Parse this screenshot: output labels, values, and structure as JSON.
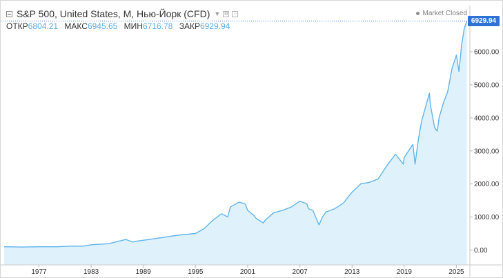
{
  "header": {
    "title": "S&P 500, United States, M, Нью-Йорк (CFD)",
    "market_status": "Market Closed"
  },
  "ohlc": {
    "open_label": "ОТКР",
    "open": "6804.21",
    "high_label": "МАКС",
    "high": "6945.65",
    "low_label": "МИН",
    "low": "6716.78",
    "close_label": "ЗАКР",
    "close": "6929.94"
  },
  "price_axis": {
    "ticks": [
      "6000.00",
      "5000.00",
      "4000.00",
      "3000.00",
      "2000.00",
      "1000.00",
      "0.00"
    ],
    "last_price_label": "6929.94"
  },
  "time_axis": {
    "ticks": [
      "1977",
      "1983",
      "1989",
      "1995",
      "2001",
      "2007",
      "2013",
      "2019",
      "2025"
    ]
  },
  "colors": {
    "line": "#5fb4ea",
    "area": "#dff2fc",
    "price_badge": "#2e73d4",
    "axis_text": "#333333"
  },
  "chart_data": {
    "type": "area",
    "title": "S&P 500, United States, M, Нью-Йорк (CFD)",
    "xlabel": "",
    "ylabel": "",
    "ylim": [
      -450,
      7400
    ],
    "xlim": [
      1972.6,
      2026.55
    ],
    "x": [
      1973,
      1975,
      1977,
      1979,
      1981,
      1982,
      1983,
      1985,
      1987,
      1987.8,
      1988,
      1990,
      1991,
      1993,
      1995,
      1996,
      1997,
      1998,
      1998.7,
      1999,
      2000,
      2000.7,
      2001,
      2001.7,
      2002,
      2002.8,
      2003,
      2004,
      2005,
      2006,
      2007,
      2007.8,
      2008,
      2008.5,
      2009.2,
      2009.6,
      2010,
      2011,
      2012,
      2013,
      2014,
      2015,
      2016,
      2017,
      2018,
      2018.9,
      2019,
      2020,
      2020.25,
      2020.6,
      2021,
      2021.9,
      2022,
      2022.5,
      2022.8,
      2023,
      2023.5,
      2024,
      2024.5,
      2025,
      2025.3,
      2025.6,
      2025.9,
      2026.2
    ],
    "values": [
      100,
      90,
      100,
      100,
      120,
      115,
      160,
      190,
      320,
      240,
      260,
      330,
      370,
      450,
      500,
      650,
      900,
      1100,
      1000,
      1300,
      1450,
      1400,
      1200,
      1050,
      950,
      820,
      900,
      1130,
      1200,
      1300,
      1480,
      1400,
      1250,
      1200,
      760,
      1000,
      1150,
      1250,
      1420,
      1750,
      2000,
      2050,
      2150,
      2550,
      2900,
      2600,
      2800,
      3200,
      2600,
      3300,
      3900,
      4750,
      4400,
      3700,
      3600,
      4000,
      4450,
      4800,
      5500,
      5900,
      5400,
      6200,
      6700,
      6929.94
    ]
  }
}
